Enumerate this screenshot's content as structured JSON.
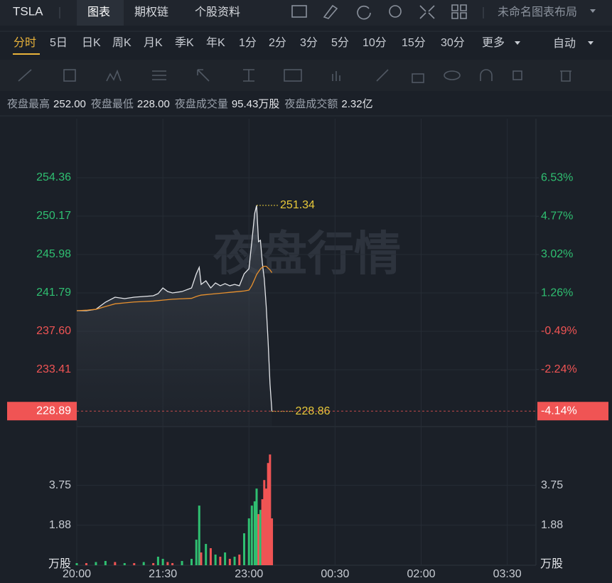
{
  "header": {
    "symbol": "TSLA",
    "tabs": [
      "图表",
      "期权链",
      "个股资料"
    ],
    "layout": "未命名图表布局"
  },
  "periods": {
    "items": [
      "分时",
      "5日",
      "日K",
      "周K",
      "月K",
      "季K",
      "年K",
      "1分",
      "2分",
      "3分",
      "5分",
      "10分",
      "15分",
      "30分",
      "更多"
    ],
    "mode": "自动"
  },
  "stats": [
    {
      "label": "夜盘最高",
      "value": "252.00"
    },
    {
      "label": "夜盘最低",
      "value": "228.00"
    },
    {
      "label": "夜盘成交量",
      "value": "95.43万股"
    },
    {
      "label": "夜盘成交额",
      "value": "2.32亿"
    }
  ],
  "watermark": "夜盘行情",
  "chart_data": [
    {
      "type": "line",
      "x": [
        "20:00",
        "20:10",
        "20:20",
        "20:30",
        "20:40",
        "20:50",
        "21:00",
        "21:10",
        "21:20",
        "21:25",
        "21:30",
        "21:35",
        "21:40",
        "21:50",
        "22:00",
        "22:05",
        "22:08",
        "22:10",
        "22:15",
        "22:20",
        "22:25",
        "22:30",
        "22:35",
        "22:40",
        "22:45",
        "22:50",
        "22:55",
        "23:00",
        "23:03",
        "23:06",
        "23:08",
        "23:10",
        "23:12",
        "23:14",
        "23:16",
        "23:18",
        "23:20",
        "23:22",
        "23:24"
      ],
      "xlim": [
        "20:00",
        "04:00"
      ],
      "series": [
        {
          "color": "#e4e6ea",
          "values": [
            239.85,
            239.85,
            240.0,
            240.78,
            241.32,
            241.17,
            241.32,
            241.4,
            241.48,
            241.71,
            242.33,
            241.94,
            241.79,
            241.94,
            242.33,
            243.88,
            244.58,
            242.72,
            243.11,
            242.33,
            242.88,
            242.57,
            242.8,
            242.57,
            242.72,
            242.57,
            243.88,
            244.43,
            247.38,
            250.48,
            251.34,
            247.38,
            247.53,
            245.05,
            243.34,
            240.39,
            236.52,
            231.86,
            228.86
          ]
        },
        {
          "color": "#e8912e",
          "values": [
            239.85,
            239.9,
            240.0,
            240.3,
            240.6,
            240.7,
            240.8,
            240.85,
            240.9,
            240.95,
            241.0,
            241.05,
            241.1,
            241.15,
            241.2,
            241.4,
            241.5,
            241.55,
            241.6,
            241.65,
            241.7,
            241.75,
            241.8,
            241.85,
            241.9,
            241.95,
            242.0,
            242.1,
            242.6,
            243.3,
            243.8,
            244.1,
            244.4,
            244.6,
            244.7,
            244.7,
            244.5,
            244.3,
            244.0
          ]
        }
      ],
      "ylim": [
        227.2,
        260.8
      ],
      "yticks": [
        254.36,
        250.17,
        245.98,
        241.79,
        {
          "value": 237.6,
          "label": "237.60"
        },
        233.41
      ],
      "y2lim": [
        -4.85,
        9.23
      ],
      "y2ticks": [
        {
          "value": 6.53,
          "label": "6.53%"
        },
        {
          "value": 4.77,
          "label": "4.77%"
        },
        {
          "value": 3.02,
          "label": "3.02%"
        },
        {
          "value": 1.26,
          "label": "1.26%"
        },
        {
          "value": -0.49,
          "label": "-0.49%"
        },
        {
          "value": -2.24,
          "label": "-2.24%"
        }
      ],
      "up_color": "#2fbf71",
      "down_color": "#f05454",
      "annotations": [
        {
          "x": "23:08",
          "value": 251.34
        },
        {
          "x": "23:24",
          "value": 228.86
        }
      ],
      "price_marker": {
        "value": 228.89,
        "pct": {
          "value": -4.14,
          "label": "-4.14%"
        }
      }
    },
    {
      "type": "bar",
      "x": [
        "20:00",
        "20:10",
        "20:20",
        "20:30",
        "20:40",
        "20:50",
        "21:00",
        "21:10",
        "21:20",
        "21:25",
        "21:30",
        "21:35",
        "21:40",
        "21:50",
        "22:00",
        "22:05",
        "22:08",
        "22:10",
        "22:15",
        "22:20",
        "22:25",
        "22:30",
        "22:35",
        "22:40",
        "22:45",
        "22:50",
        "22:55",
        "23:00",
        "23:03",
        "23:06",
        "23:08",
        "23:10",
        "23:12",
        "23:14",
        "23:16",
        "23:18",
        "23:20",
        "23:22",
        "23:24"
      ],
      "xlim": [
        "20:00",
        "04:00"
      ],
      "xticks": [
        "20:00",
        "21:30",
        "23:00",
        "00:30",
        "02:00",
        "03:30"
      ],
      "values": [
        0.1,
        0.1,
        0.15,
        0.2,
        0.15,
        0.1,
        0.1,
        0.15,
        0.1,
        0.4,
        0.3,
        0.15,
        0.1,
        0.2,
        0.3,
        1.2,
        2.8,
        0.6,
        1.0,
        0.8,
        0.5,
        0.4,
        0.6,
        0.3,
        0.4,
        0.5,
        1.5,
        2.2,
        2.8,
        3.0,
        3.6,
        2.4,
        2.6,
        3.1,
        4.0,
        3.6,
        4.8,
        5.2,
        2.2
      ],
      "colors": [
        "#2fbf71",
        "#f05454",
        "#2fbf71",
        "#2fbf71",
        "#f05454",
        "#2fbf71",
        "#f05454",
        "#2fbf71",
        "#f05454",
        "#2fbf71",
        "#2fbf71",
        "#f05454",
        "#f05454",
        "#2fbf71",
        "#2fbf71",
        "#2fbf71",
        "#2fbf71",
        "#f05454",
        "#2fbf71",
        "#f05454",
        "#2fbf71",
        "#f05454",
        "#2fbf71",
        "#f05454",
        "#2fbf71",
        "#f05454",
        "#2fbf71",
        "#2fbf71",
        "#2fbf71",
        "#2fbf71",
        "#2fbf71",
        "#f05454",
        "#2fbf71",
        "#f05454",
        "#f05454",
        "#f05454",
        "#f05454",
        "#f05454",
        "#f05454"
      ],
      "ylim": [
        0,
        6.51
      ],
      "yticks": [
        3.75,
        1.88
      ],
      "unit": "万股"
    }
  ]
}
